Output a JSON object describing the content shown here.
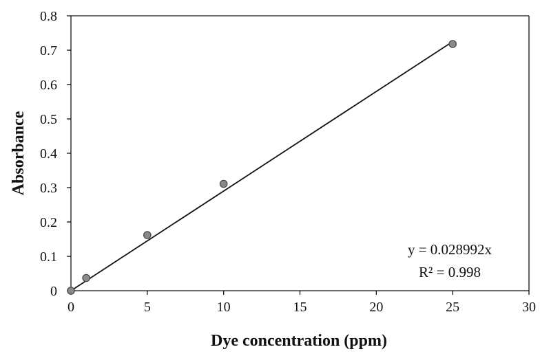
{
  "chart_data": {
    "type": "scatter",
    "xlabel": "Dye concentration (ppm)",
    "ylabel": "Absorbance",
    "xlim": [
      0,
      30
    ],
    "ylim": [
      0,
      0.8
    ],
    "xticks": [
      0,
      5,
      10,
      15,
      20,
      25,
      30
    ],
    "yticks": [
      0,
      0.1,
      0.2,
      0.3,
      0.4,
      0.5,
      0.6,
      0.7,
      0.8
    ],
    "xtick_labels": [
      "0",
      "5",
      "10",
      "15",
      "20",
      "25",
      "30"
    ],
    "ytick_labels": [
      "0",
      "0.1",
      "0.2",
      "0.3",
      "0.4",
      "0.5",
      "0.6",
      "0.7",
      "0.8"
    ],
    "grid": false,
    "legend": false,
    "points": {
      "x": [
        0,
        1,
        5,
        10,
        25
      ],
      "y": [
        0.0,
        0.037,
        0.162,
        0.311,
        0.718
      ]
    },
    "trendline": {
      "type": "linear-through-origin",
      "slope": 0.028992,
      "x_range": [
        0,
        25
      ]
    },
    "annotations": [
      "y = 0.028992x",
      "R² = 0.998"
    ],
    "colors": {
      "marker_fill": "#8a8a8a",
      "marker_stroke": "#444444",
      "line": "#111111",
      "axis": "#111111"
    }
  }
}
